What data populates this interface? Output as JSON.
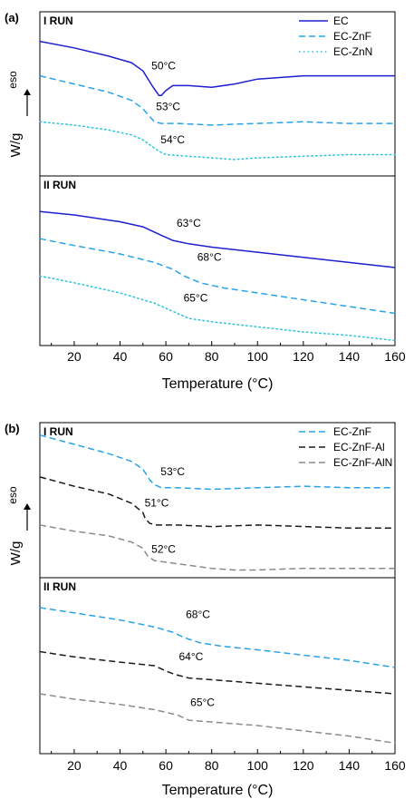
{
  "colors": {
    "EC": "#1f1fcf",
    "EC-ZnF": "#29a3e6",
    "EC-ZnN": "#2ec4d6",
    "EC-ZnF-Al": "#1a1a1a",
    "EC-ZnF-AlN": "#8a8a8a",
    "axis": "#000000"
  },
  "chart_data": [
    {
      "type": "line",
      "panel_label": "(a)",
      "xlabel": "Temperature (°C)",
      "ylabel": "W/g",
      "exo_label": "eso",
      "xlim": [
        5,
        160
      ],
      "xticks": [
        20,
        40,
        60,
        80,
        100,
        120,
        140,
        160
      ],
      "ylim": [
        0,
        1
      ],
      "grid": false,
      "legend_position": "top-right",
      "legend": [
        {
          "name": "EC",
          "style": "solid",
          "color": "#1f1fcf"
        },
        {
          "name": "EC-ZnF",
          "style": "dashed",
          "color": "#29a3e6"
        },
        {
          "name": "EC-ZnN",
          "style": "dotted",
          "color": "#2ec4d6"
        }
      ],
      "subplots": [
        {
          "title": "I RUN",
          "series": [
            {
              "name": "EC",
              "style": "solid",
              "color": "#1f1fcf",
              "x": [
                5,
                20,
                35,
                45,
                50,
                54,
                57,
                58,
                60,
                63,
                70,
                80,
                90,
                100,
                120,
                140,
                160
              ],
              "y": [
                0.82,
                0.78,
                0.73,
                0.69,
                0.64,
                0.55,
                0.49,
                0.49,
                0.52,
                0.55,
                0.55,
                0.54,
                0.56,
                0.59,
                0.61,
                0.61,
                0.61
              ]
            },
            {
              "name": "EC-ZnF",
              "style": "dashed",
              "color": "#29a3e6",
              "x": [
                5,
                20,
                35,
                45,
                50,
                53,
                55,
                58,
                65,
                80,
                100,
                120,
                140,
                160
              ],
              "y": [
                0.61,
                0.56,
                0.51,
                0.46,
                0.41,
                0.36,
                0.33,
                0.32,
                0.32,
                0.31,
                0.32,
                0.33,
                0.32,
                0.32
              ]
            },
            {
              "name": "EC-ZnN",
              "style": "dotted",
              "color": "#2ec4d6",
              "x": [
                5,
                20,
                35,
                45,
                50,
                54,
                57,
                60,
                70,
                80,
                90,
                100,
                120,
                140,
                160
              ],
              "y": [
                0.33,
                0.31,
                0.28,
                0.25,
                0.22,
                0.18,
                0.15,
                0.13,
                0.12,
                0.11,
                0.1,
                0.11,
                0.12,
                0.13,
                0.13
              ]
            }
          ],
          "annotations": [
            {
              "text": "50°C",
              "x": 59,
              "y": 0.65
            },
            {
              "text": "53°C",
              "x": 61,
              "y": 0.4
            },
            {
              "text": "54°C",
              "x": 63,
              "y": 0.2
            }
          ]
        },
        {
          "title": "II RUN",
          "series": [
            {
              "name": "EC",
              "style": "solid",
              "color": "#1f1fcf",
              "x": [
                5,
                20,
                40,
                50,
                58,
                63,
                70,
                80,
                100,
                120,
                140,
                160
              ],
              "y": [
                0.79,
                0.77,
                0.73,
                0.7,
                0.65,
                0.62,
                0.6,
                0.58,
                0.55,
                0.52,
                0.49,
                0.46
              ]
            },
            {
              "name": "EC-ZnF",
              "style": "dashed",
              "color": "#29a3e6",
              "x": [
                5,
                20,
                40,
                55,
                63,
                68,
                75,
                85,
                100,
                120,
                140,
                160
              ],
              "y": [
                0.63,
                0.59,
                0.54,
                0.49,
                0.45,
                0.41,
                0.37,
                0.34,
                0.31,
                0.27,
                0.23,
                0.19
              ]
            },
            {
              "name": "EC-ZnN",
              "style": "dotted",
              "color": "#2ec4d6",
              "x": [
                5,
                20,
                40,
                55,
                65,
                70,
                80,
                100,
                120,
                140,
                160
              ],
              "y": [
                0.41,
                0.37,
                0.31,
                0.25,
                0.19,
                0.16,
                0.14,
                0.11,
                0.08,
                0.06,
                0.03
              ]
            }
          ],
          "annotations": [
            {
              "text": "63°C",
              "x": 70,
              "y": 0.7
            },
            {
              "text": "68°C",
              "x": 79,
              "y": 0.5
            },
            {
              "text": "65°C",
              "x": 73,
              "y": 0.26
            }
          ]
        }
      ]
    },
    {
      "type": "line",
      "panel_label": "(b)",
      "xlabel": "Temperature (°C)",
      "ylabel": "W/g",
      "exo_label": "eso",
      "xlim": [
        5,
        160
      ],
      "xticks": [
        20,
        40,
        60,
        80,
        100,
        120,
        140,
        160
      ],
      "ylim": [
        0,
        1
      ],
      "grid": false,
      "legend_position": "top-right",
      "legend": [
        {
          "name": "EC-ZnF",
          "style": "dashed",
          "color": "#29a3e6"
        },
        {
          "name": "EC-ZnF-Al",
          "style": "dashed",
          "color": "#1a1a1a"
        },
        {
          "name": "EC-ZnF-AlN",
          "style": "dashed",
          "color": "#8a8a8a"
        }
      ],
      "subplots": [
        {
          "title": "I RUN",
          "series": [
            {
              "name": "EC-ZnF",
              "style": "dashed",
              "color": "#29a3e6",
              "x": [
                5,
                20,
                35,
                45,
                50,
                53,
                55,
                58,
                65,
                80,
                100,
                120,
                140,
                160
              ],
              "y": [
                0.92,
                0.86,
                0.8,
                0.75,
                0.7,
                0.63,
                0.6,
                0.58,
                0.58,
                0.57,
                0.58,
                0.59,
                0.58,
                0.58
              ]
            },
            {
              "name": "EC-ZnF-Al",
              "style": "dashed",
              "color": "#1a1a1a",
              "x": [
                5,
                20,
                35,
                45,
                50,
                51,
                53,
                56,
                65,
                80,
                100,
                120,
                140,
                160
              ],
              "y": [
                0.65,
                0.59,
                0.54,
                0.48,
                0.42,
                0.38,
                0.35,
                0.34,
                0.34,
                0.33,
                0.34,
                0.33,
                0.32,
                0.32
              ]
            },
            {
              "name": "EC-ZnF-AlN",
              "style": "dashed",
              "color": "#8a8a8a",
              "x": [
                5,
                20,
                35,
                45,
                50,
                52,
                55,
                60,
                70,
                80,
                90,
                100,
                120,
                140,
                160
              ],
              "y": [
                0.34,
                0.3,
                0.27,
                0.23,
                0.19,
                0.14,
                0.11,
                0.1,
                0.08,
                0.06,
                0.05,
                0.05,
                0.06,
                0.06,
                0.06
              ]
            }
          ],
          "annotations": [
            {
              "text": "53°C",
              "x": 63,
              "y": 0.66
            },
            {
              "text": "51°C",
              "x": 56,
              "y": 0.46
            },
            {
              "text": "52°C",
              "x": 59,
              "y": 0.16
            }
          ]
        },
        {
          "title": "II RUN",
          "series": [
            {
              "name": "EC-ZnF",
              "style": "dashed",
              "color": "#29a3e6",
              "x": [
                5,
                20,
                40,
                55,
                63,
                68,
                75,
                85,
                100,
                120,
                140,
                160
              ],
              "y": [
                0.83,
                0.8,
                0.76,
                0.72,
                0.69,
                0.66,
                0.63,
                0.61,
                0.59,
                0.56,
                0.53,
                0.49
              ]
            },
            {
              "name": "EC-ZnF-Al",
              "style": "dashed",
              "color": "#1a1a1a",
              "x": [
                5,
                20,
                40,
                55,
                60,
                64,
                70,
                80,
                100,
                120,
                140,
                160
              ],
              "y": [
                0.58,
                0.55,
                0.52,
                0.5,
                0.47,
                0.45,
                0.43,
                0.42,
                0.4,
                0.38,
                0.36,
                0.34
              ]
            },
            {
              "name": "EC-ZnF-AlN",
              "style": "dashed",
              "color": "#8a8a8a",
              "x": [
                5,
                20,
                40,
                55,
                65,
                70,
                80,
                100,
                120,
                140,
                160
              ],
              "y": [
                0.34,
                0.31,
                0.28,
                0.25,
                0.22,
                0.19,
                0.18,
                0.16,
                0.13,
                0.1,
                0.06
              ]
            }
          ],
          "annotations": [
            {
              "text": "68°C",
              "x": 74,
              "y": 0.77
            },
            {
              "text": "64°C",
              "x": 71,
              "y": 0.53
            },
            {
              "text": "65°C",
              "x": 76,
              "y": 0.27
            }
          ]
        }
      ]
    }
  ]
}
